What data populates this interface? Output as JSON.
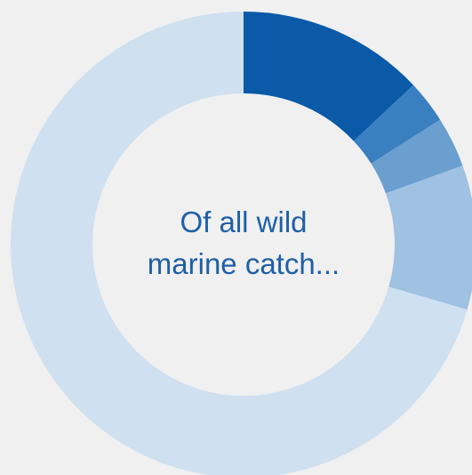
{
  "center_text": {
    "line1": "Of all wild",
    "line2": "marine catch..."
  },
  "chart_data": {
    "type": "donut",
    "title": "",
    "slices": [
      {
        "value": 13,
        "color": "#0a5aa8"
      },
      {
        "value": 3,
        "color": "#3a80c0"
      },
      {
        "value": 3.5,
        "color": "#6a9fd0"
      },
      {
        "value": 10,
        "color": "#9fc1e2"
      },
      {
        "value": 70.5,
        "color": "#cfe0f0"
      }
    ],
    "start": "12 o'clock",
    "direction": "clockwise"
  }
}
